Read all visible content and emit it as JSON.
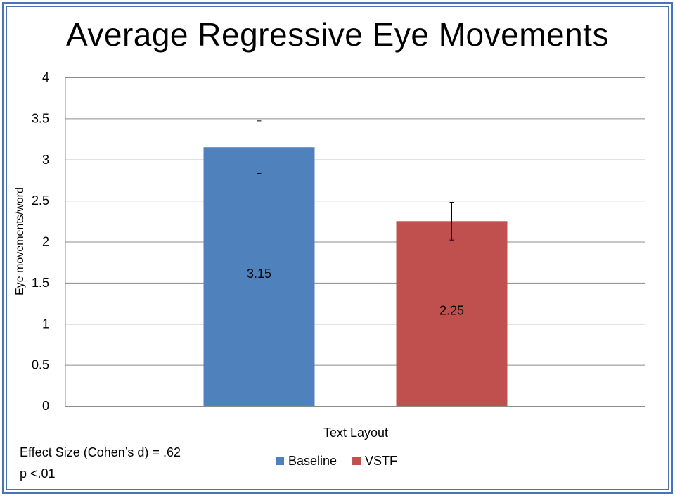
{
  "slide": {
    "title": "Average  Regressive Eye Movements",
    "notes": [
      "Effect Size (Cohen’s d) = .62",
      "p <.01"
    ]
  },
  "chart_data": {
    "type": "bar",
    "title": "",
    "xlabel": "Text Layout",
    "ylabel": "Eye movements/word",
    "ylim": [
      0,
      4
    ],
    "yticks": [
      0,
      0.5,
      1,
      1.5,
      2,
      2.5,
      3,
      3.5,
      4
    ],
    "grid": true,
    "legend_position": "bottom",
    "series": [
      {
        "name": "Baseline",
        "value": 3.15,
        "error": [
          2.83,
          3.47
        ],
        "color": "#4f81bd",
        "label": "3.15"
      },
      {
        "name": "VSTF",
        "value": 2.25,
        "error": [
          2.02,
          2.48
        ],
        "color": "#c0504d",
        "label": "2.25"
      }
    ]
  }
}
